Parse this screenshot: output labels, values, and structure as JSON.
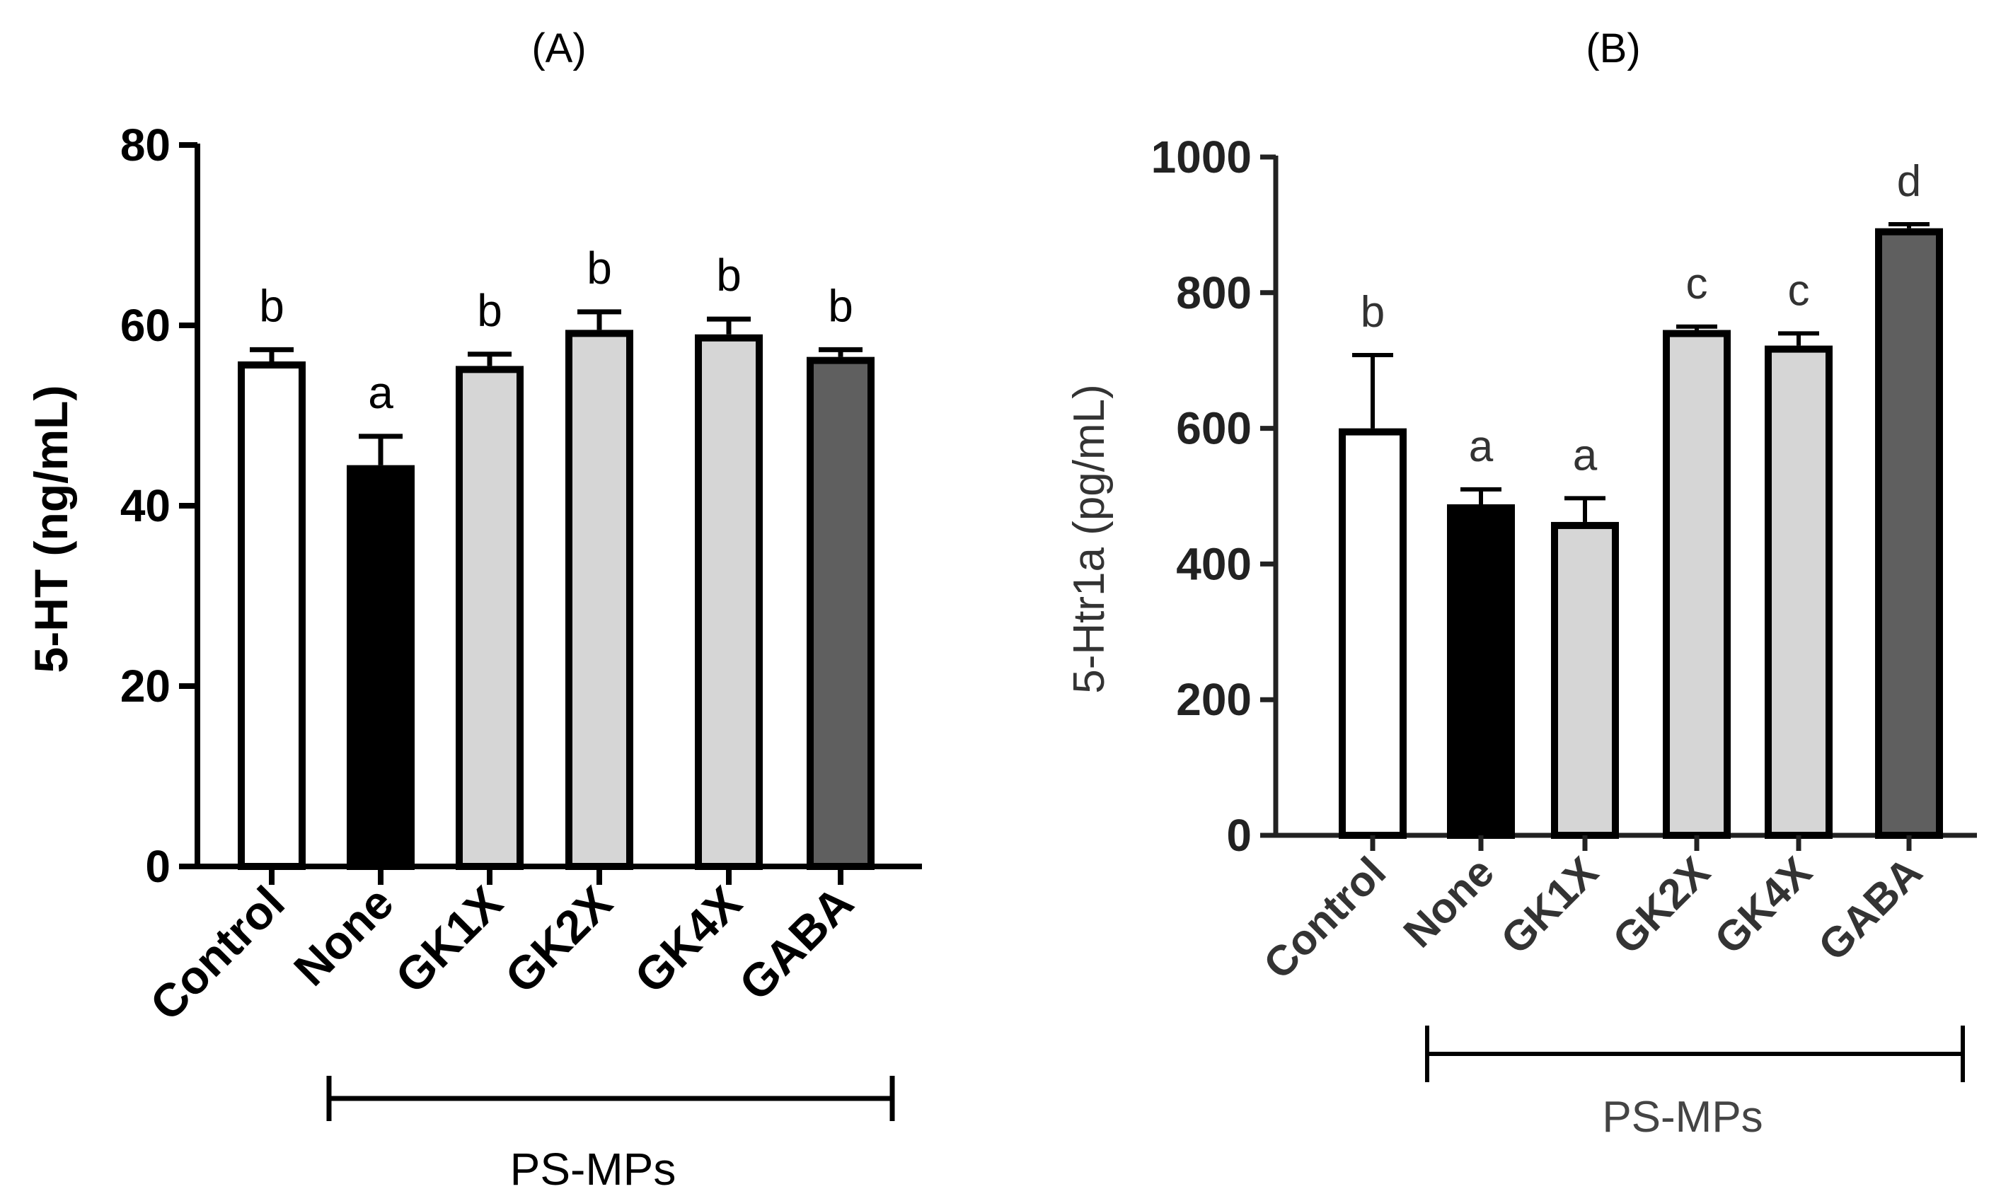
{
  "chart_data": [
    {
      "type": "bar",
      "panel": "A",
      "title": "(A)",
      "ylabel": "5-HT (ng/mL)",
      "xlabel": "",
      "ylim": [
        0,
        80
      ],
      "yticks": [
        0,
        20,
        40,
        60,
        80
      ],
      "categories": [
        "Control",
        "None",
        "GK1X",
        "GK2X",
        "GK4X",
        "GABA"
      ],
      "values": [
        56,
        44.5,
        55.5,
        59.5,
        59,
        56.5
      ],
      "errors": [
        1.3,
        3.2,
        1.3,
        2.0,
        1.7,
        0.8
      ],
      "significance": [
        "b",
        "a",
        "b",
        "b",
        "b",
        "b"
      ],
      "fill_colors": [
        "#ffffff",
        "#000000",
        "#d6d6d6",
        "#d6d6d6",
        "#d6d6d6",
        "#5f5f5f"
      ],
      "group_label": "PS-MPs",
      "group_span": [
        "None",
        "GABA"
      ]
    },
    {
      "type": "bar",
      "panel": "B",
      "title": "(B)",
      "ylabel": "5-Htr1a (pg/mL)",
      "xlabel": "",
      "ylim": [
        0,
        1000
      ],
      "yticks": [
        0,
        200,
        400,
        600,
        800,
        1000
      ],
      "categories": [
        "Control",
        "None",
        "GK1X",
        "GK2X",
        "GK4X",
        "GABA"
      ],
      "values": [
        600,
        488,
        462,
        745,
        722,
        895
      ],
      "errors": [
        108,
        22,
        35,
        5,
        18,
        6
      ],
      "significance": [
        "b",
        "a",
        "a",
        "c",
        "c",
        "d"
      ],
      "fill_colors": [
        "#ffffff",
        "#000000",
        "#d6d6d6",
        "#d6d6d6",
        "#d6d6d6",
        "#5f5f5f"
      ],
      "group_label": "PS-MPs",
      "group_span": [
        "None",
        "GABA"
      ]
    }
  ]
}
